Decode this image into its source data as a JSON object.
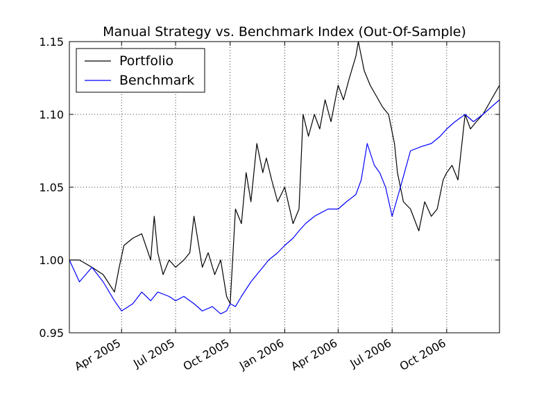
{
  "chart_data": {
    "type": "line",
    "title": "Manual Strategy vs. Benchmark Index (Out-Of-Sample)",
    "xlabel": "",
    "ylabel": "",
    "xlim": [
      "2005-01-03",
      "2006-12-29"
    ],
    "ylim": [
      0.95,
      1.15
    ],
    "yticks": [
      0.95,
      1.0,
      1.05,
      1.1,
      1.15
    ],
    "ytick_labels": [
      "0.95",
      "1.00",
      "1.05",
      "1.10",
      "1.15"
    ],
    "xticks": [
      "2005-04-01",
      "2005-07-01",
      "2005-10-01",
      "2006-01-01",
      "2006-04-01",
      "2006-07-01",
      "2006-10-01"
    ],
    "xtick_labels": [
      "Apr 2005",
      "Jul 2005",
      "Oct 2005",
      "Jan 2006",
      "Apr 2006",
      "Jul 2006",
      "Oct 2006"
    ],
    "grid": true,
    "legend_position": "top-left",
    "series": [
      {
        "name": "Portfolio",
        "color": "#000000",
        "x": [
          "2005-01-03",
          "2005-01-20",
          "2005-02-10",
          "2005-03-01",
          "2005-03-20",
          "2005-03-28",
          "2005-04-05",
          "2005-04-20",
          "2005-05-05",
          "2005-05-20",
          "2005-05-26",
          "2005-06-01",
          "2005-06-10",
          "2005-06-20",
          "2005-07-01",
          "2005-07-15",
          "2005-07-25",
          "2005-08-01",
          "2005-08-15",
          "2005-08-25",
          "2005-09-05",
          "2005-09-15",
          "2005-09-25",
          "2005-10-01",
          "2005-10-10",
          "2005-10-20",
          "2005-10-28",
          "2005-11-05",
          "2005-11-15",
          "2005-11-25",
          "2005-12-01",
          "2005-12-10",
          "2005-12-20",
          "2006-01-01",
          "2006-01-15",
          "2006-01-25",
          "2006-02-01",
          "2006-02-10",
          "2006-02-20",
          "2006-03-01",
          "2006-03-10",
          "2006-03-20",
          "2006-04-01",
          "2006-04-10",
          "2006-04-20",
          "2006-05-01",
          "2006-05-05",
          "2006-05-15",
          "2006-05-25",
          "2006-06-01",
          "2006-06-15",
          "2006-06-25",
          "2006-07-05",
          "2006-07-10",
          "2006-07-20",
          "2006-08-01",
          "2006-08-15",
          "2006-08-25",
          "2006-09-05",
          "2006-09-15",
          "2006-09-25",
          "2006-10-01",
          "2006-10-10",
          "2006-10-20",
          "2006-11-01",
          "2006-11-10",
          "2006-11-20",
          "2006-12-01",
          "2006-12-15",
          "2006-12-29"
        ],
        "y": [
          1.0,
          1.0,
          0.995,
          0.99,
          0.978,
          0.995,
          1.01,
          1.015,
          1.018,
          1.0,
          1.03,
          1.005,
          0.99,
          1.0,
          0.995,
          1.0,
          1.005,
          1.03,
          0.995,
          1.005,
          0.99,
          1.0,
          0.975,
          0.97,
          1.035,
          1.025,
          1.06,
          1.04,
          1.08,
          1.06,
          1.07,
          1.055,
          1.04,
          1.05,
          1.025,
          1.035,
          1.1,
          1.085,
          1.1,
          1.09,
          1.11,
          1.095,
          1.12,
          1.11,
          1.125,
          1.14,
          1.15,
          1.13,
          1.12,
          1.115,
          1.105,
          1.1,
          1.08,
          1.06,
          1.04,
          1.035,
          1.02,
          1.04,
          1.03,
          1.035,
          1.055,
          1.06,
          1.065,
          1.055,
          1.1,
          1.09,
          1.095,
          1.1,
          1.11,
          1.12
        ]
      },
      {
        "name": "Benchmark",
        "color": "#0000ff",
        "x": [
          "2005-01-03",
          "2005-01-20",
          "2005-02-10",
          "2005-03-01",
          "2005-03-20",
          "2005-04-01",
          "2005-04-20",
          "2005-05-05",
          "2005-05-20",
          "2005-06-01",
          "2005-06-20",
          "2005-07-01",
          "2005-07-15",
          "2005-08-01",
          "2005-08-15",
          "2005-09-01",
          "2005-09-15",
          "2005-09-25",
          "2005-10-01",
          "2005-10-10",
          "2005-10-20",
          "2005-10-28",
          "2005-11-05",
          "2005-11-15",
          "2005-11-25",
          "2005-12-05",
          "2005-12-20",
          "2006-01-01",
          "2006-01-15",
          "2006-01-25",
          "2006-02-05",
          "2006-02-20",
          "2006-03-01",
          "2006-03-15",
          "2006-04-01",
          "2006-04-15",
          "2006-05-01",
          "2006-05-10",
          "2006-05-20",
          "2006-06-01",
          "2006-06-10",
          "2006-06-20",
          "2006-07-01",
          "2006-07-15",
          "2006-08-01",
          "2006-08-20",
          "2006-09-05",
          "2006-09-20",
          "2006-10-01",
          "2006-10-15",
          "2006-11-01",
          "2006-11-15",
          "2006-12-01",
          "2006-12-15",
          "2006-12-29"
        ],
        "y": [
          1.0,
          0.985,
          0.995,
          0.985,
          0.972,
          0.965,
          0.97,
          0.978,
          0.972,
          0.978,
          0.975,
          0.972,
          0.975,
          0.97,
          0.965,
          0.968,
          0.963,
          0.965,
          0.97,
          0.968,
          0.975,
          0.98,
          0.985,
          0.99,
          0.995,
          1.0,
          1.005,
          1.01,
          1.015,
          1.02,
          1.025,
          1.03,
          1.032,
          1.035,
          1.035,
          1.04,
          1.045,
          1.055,
          1.08,
          1.065,
          1.06,
          1.05,
          1.03,
          1.05,
          1.075,
          1.078,
          1.08,
          1.085,
          1.09,
          1.095,
          1.1,
          1.095,
          1.1,
          1.105,
          1.11
        ]
      }
    ]
  }
}
